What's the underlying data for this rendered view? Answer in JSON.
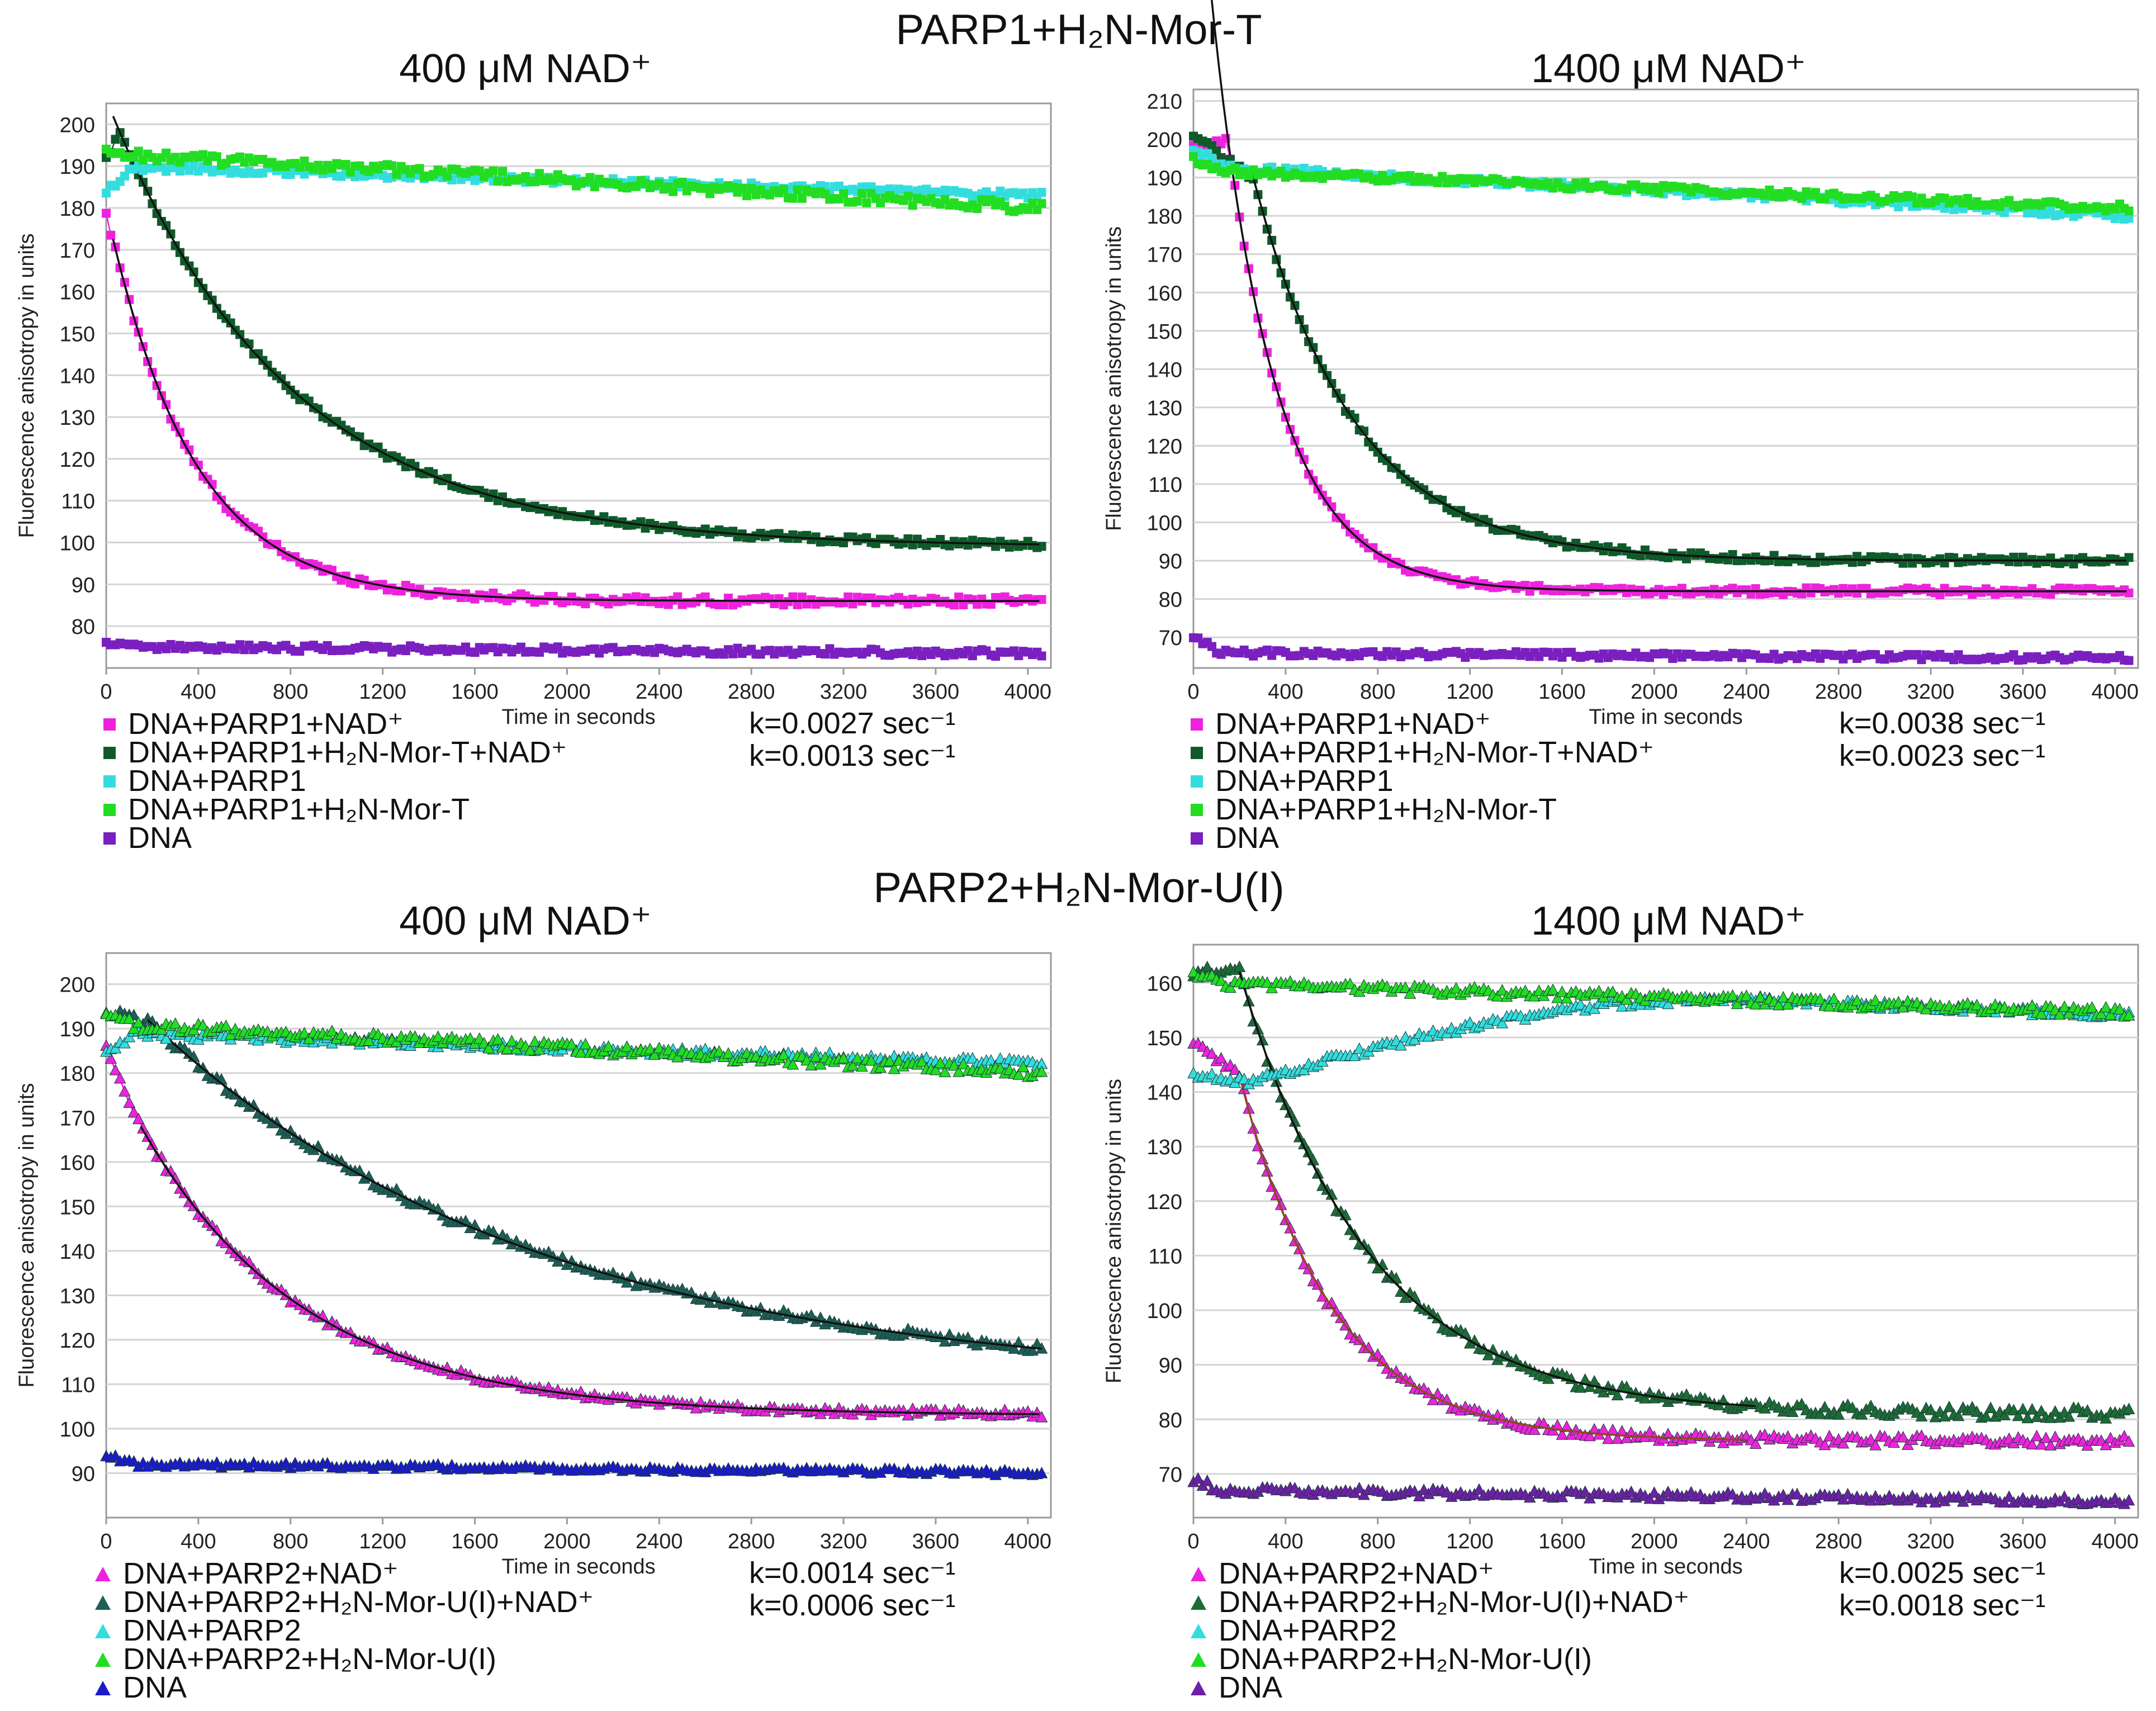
{
  "sections": [
    {
      "title": "PARP1+H₂N-Mor-T"
    },
    {
      "title": "PARP2+H₂N-Mor-U(I)"
    }
  ],
  "chart_data": [
    {
      "type": "scatter",
      "title": "400 μM NAD⁺",
      "xlabel": "Time in seconds",
      "ylabel": "Fluorescence anisotropy in units",
      "marker": "square",
      "xlim": [
        0,
        4100
      ],
      "ylim": [
        70,
        205
      ],
      "xticks": [
        0,
        400,
        800,
        1200,
        1600,
        2000,
        2400,
        2800,
        3200,
        3600,
        4000
      ],
      "yticks": [
        80,
        90,
        100,
        110,
        120,
        130,
        140,
        150,
        160,
        170,
        180,
        190,
        200
      ],
      "grid": true,
      "legend_position": "bottom-left",
      "series": [
        {
          "name": "DNA+PARP1+NAD⁺",
          "color": "#ee22dd",
          "model": "decay",
          "start": 178,
          "y0": 168,
          "plateau": 86,
          "k": 0.0027,
          "t0": 50,
          "noise": 1.0,
          "fit": true,
          "fit_start": 30
        },
        {
          "name": "DNA+PARP1+H₂N-Mor-T+NAD⁺",
          "color": "#0f5a2a",
          "model": "decay",
          "start": 192,
          "y0": 198,
          "plateau": 99,
          "k": 0.0013,
          "t0": 60,
          "noise": 0.8,
          "fit": true,
          "fit_start": 30
        },
        {
          "name": "DNA+PARP1",
          "color": "#33dddd",
          "model": "linear",
          "y0": 190,
          "y1": 183,
          "start": 184,
          "noise": 0.8
        },
        {
          "name": "DNA+PARP1+H₂N-Mor-T",
          "color": "#22dd22",
          "model": "linear",
          "y0": 193,
          "y1": 180,
          "start": 193,
          "noise": 1.3
        },
        {
          "name": "DNA",
          "color": "#7a1fc0",
          "model": "linear",
          "y0": 75,
          "y1": 73.5,
          "start": 76,
          "noise": 0.8
        }
      ],
      "rates": [
        "k=0.0027 sec⁻¹",
        "k=0.0013 sec⁻¹"
      ]
    },
    {
      "type": "scatter",
      "title": "1400 μM NAD⁺",
      "xlabel": "Time in seconds",
      "ylabel": "Fluorescence anisotropy in units",
      "marker": "square",
      "xlim": [
        0,
        4100
      ],
      "ylim": [
        62,
        213
      ],
      "xticks": [
        0,
        400,
        800,
        1200,
        1600,
        2000,
        2400,
        2800,
        3200,
        3600,
        4000
      ],
      "yticks": [
        70,
        80,
        90,
        100,
        110,
        120,
        130,
        140,
        150,
        160,
        170,
        180,
        190,
        200,
        210
      ],
      "grid": true,
      "legend_position": "bottom-left",
      "series": [
        {
          "name": "DNA+PARP1+NAD⁺",
          "color": "#ee22dd",
          "model": "decay",
          "start": 198,
          "y0": 200,
          "plateau": 82,
          "k": 0.0038,
          "t0": 150,
          "noise": 0.9,
          "fit": true,
          "fit_start": 50
        },
        {
          "name": "DNA+PARP1+H₂N-Mor-T+NAD⁺",
          "color": "#0f5a2a",
          "model": "decay",
          "start": 201,
          "y0": 190,
          "plateau": 90,
          "k": 0.0023,
          "t0": 260,
          "noise": 0.9,
          "fit": true,
          "fit_start": 250
        },
        {
          "name": "DNA+PARP1",
          "color": "#33dddd",
          "model": "linear",
          "y0": 193,
          "y1": 180,
          "start": 198,
          "noise": 1.0
        },
        {
          "name": "DNA+PARP1+H₂N-Mor-T",
          "color": "#22dd22",
          "model": "linear",
          "y0": 192,
          "y1": 182,
          "start": 195,
          "noise": 1.0
        },
        {
          "name": "DNA",
          "color": "#7a1fc0",
          "model": "linear",
          "y0": 66,
          "y1": 64.5,
          "start": 70,
          "noise": 0.8
        }
      ],
      "rates": [
        "k=0.0038 sec⁻¹",
        "k=0.0023 sec⁻¹"
      ]
    },
    {
      "type": "scatter",
      "title": "400 μM NAD⁺",
      "xlabel": "Time in seconds",
      "ylabel": "Fluorescence anisotropy in units",
      "marker": "triangle",
      "xlim": [
        0,
        4100
      ],
      "ylim": [
        80,
        207
      ],
      "xticks": [
        0,
        400,
        800,
        1200,
        1600,
        2000,
        2400,
        2800,
        3200,
        3600,
        4000
      ],
      "yticks": [
        90,
        100,
        110,
        120,
        130,
        140,
        150,
        160,
        170,
        180,
        190,
        200
      ],
      "grid": true,
      "legend_position": "bottom-left",
      "series": [
        {
          "name": "DNA+PARP2+NAD⁺",
          "color": "#ee22dd",
          "model": "decay",
          "start": 186,
          "y0": 168,
          "plateau": 103,
          "k": 0.0014,
          "t0": 150,
          "noise": 0.8,
          "fit": true,
          "fit_start": 150
        },
        {
          "name": "DNA+PARP2+H₂N-Mor-U(I)+NAD⁺",
          "color": "#1d5f55",
          "model": "decay",
          "start": 194,
          "y0": 191,
          "plateau": 110,
          "k": 0.0006,
          "t0": 200,
          "noise": 1.0,
          "fit": true,
          "fit_start": 180
        },
        {
          "name": "DNA+PARP2",
          "color": "#33dddd",
          "model": "linear",
          "y0": 189,
          "y1": 182,
          "start": 184,
          "noise": 0.9
        },
        {
          "name": "DNA+PARP2+H₂N-Mor-U(I)",
          "color": "#22dd22",
          "model": "linear",
          "y0": 191,
          "y1": 180,
          "start": 193,
          "noise": 1.1
        },
        {
          "name": "DNA",
          "color": "#1a1acc",
          "model": "linear",
          "y0": 92,
          "y1": 90,
          "start": 94,
          "noise": 0.6
        }
      ],
      "rates": [
        "k=0.0014 sec⁻¹",
        "k=0.0006 sec⁻¹"
      ]
    },
    {
      "type": "scatter",
      "title": "1400 μM NAD⁺",
      "xlabel": "Time in seconds",
      "ylabel": "Fluorescence anisotropy in units",
      "marker": "triangle",
      "xlim": [
        0,
        4100
      ],
      "ylim": [
        62,
        167
      ],
      "xticks": [
        0,
        400,
        800,
        1200,
        1600,
        2000,
        2400,
        2800,
        3200,
        3600,
        4000
      ],
      "yticks": [
        70,
        80,
        90,
        100,
        110,
        120,
        130,
        140,
        150,
        160
      ],
      "grid": true,
      "legend_position": "bottom-left",
      "series": [
        {
          "name": "DNA+PARP2+NAD⁺",
          "color": "#ee22dd",
          "model": "decay",
          "start": 149,
          "y0": 143,
          "plateau": 76,
          "k": 0.0025,
          "t0": 200,
          "noise": 0.9,
          "fit": true,
          "fit_start": 200,
          "fit_end": 2400,
          "fit_color": "#8a4a1e"
        },
        {
          "name": "DNA+PARP2+H₂N-Mor-U(I)+NAD⁺",
          "color": "#1d6b35",
          "model": "decay",
          "start": 162,
          "y0": 162,
          "plateau": 81,
          "k": 0.0018,
          "t0": 200,
          "noise": 1.0,
          "fit": true,
          "fit_start": 200,
          "fit_end": 2450
        },
        {
          "name": "DNA+PARP2",
          "color": "#33dddd",
          "model": "rise",
          "start": 143,
          "y0": 142,
          "y1": 157,
          "y_end": 154,
          "noise": 0.7
        },
        {
          "name": "DNA+PARP2+H₂N-Mor-U(I)",
          "color": "#22dd22",
          "model": "linear",
          "y0": 160,
          "y1": 154.5,
          "start": 162,
          "noise": 0.8
        },
        {
          "name": "DNA",
          "color": "#6e1fa8",
          "model": "linear",
          "y0": 67,
          "y1": 65,
          "start": 69,
          "noise": 0.7
        }
      ],
      "rates": [
        "k=0.0025 sec⁻¹",
        "k=0.0018 sec⁻¹"
      ]
    }
  ]
}
